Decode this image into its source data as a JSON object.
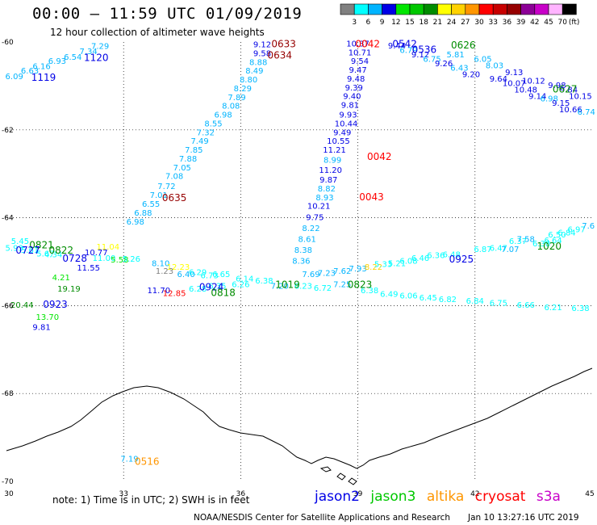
{
  "header": {
    "title": "00:00 – 11:59 UTC 01/09/2019",
    "subtitle": "12 hour collection of altimeter wave heights"
  },
  "legend": {
    "unit": "(ft)",
    "bins": [
      {
        "label": "3",
        "color": "#808080"
      },
      {
        "label": "6",
        "color": "#00ffff"
      },
      {
        "label": "9",
        "color": "#00b4ff"
      },
      {
        "label": "12",
        "color": "#0000e6"
      },
      {
        "label": "15",
        "color": "#00e600"
      },
      {
        "label": "18",
        "color": "#00c800"
      },
      {
        "label": "21",
        "color": "#008c00"
      },
      {
        "label": "24",
        "color": "#ffff00"
      },
      {
        "label": "27",
        "color": "#ffd200"
      },
      {
        "label": "30",
        "color": "#ff9600"
      },
      {
        "label": "33",
        "color": "#ff0000"
      },
      {
        "label": "36",
        "color": "#c80000"
      },
      {
        "label": "39",
        "color": "#960000"
      },
      {
        "label": "42",
        "color": "#8c0096"
      },
      {
        "label": "45",
        "color": "#c800c8"
      },
      {
        "label": "70",
        "color": "#ffb4ff"
      },
      {
        "label": "",
        "color": "#000000"
      }
    ]
  },
  "axes": {
    "lon_ticks": [
      "30",
      "33",
      "36",
      "39",
      "42",
      "45"
    ],
    "lat_ticks": [
      "-60",
      "-62",
      "-64",
      "-66",
      "-68",
      "-70"
    ]
  },
  "map": {
    "lon_range": [
      30,
      45
    ],
    "lat_range": [
      -70,
      -60
    ],
    "wave_heights": [
      {
        "t": "6.09",
        "lon": 30.2,
        "lat": -60.85,
        "c": "#00b4ff"
      },
      {
        "t": "6.63",
        "lon": 30.6,
        "lat": -60.72,
        "c": "#00b4ff"
      },
      {
        "t": "6.16",
        "lon": 30.9,
        "lat": -60.62,
        "c": "#00b4ff"
      },
      {
        "t": "6.93",
        "lon": 31.3,
        "lat": -60.5,
        "c": "#00b4ff"
      },
      {
        "t": "6.54",
        "lon": 31.7,
        "lat": -60.4,
        "c": "#00b4ff"
      },
      {
        "t": "7.34",
        "lon": 32.1,
        "lat": -60.28,
        "c": "#00b4ff"
      },
      {
        "t": "7.29",
        "lon": 32.4,
        "lat": -60.16,
        "c": "#00b4ff"
      },
      {
        "t": "9.12",
        "lon": 36.55,
        "lat": -60.12,
        "c": "#0000e6"
      },
      {
        "t": "9.58",
        "lon": 36.55,
        "lat": -60.32,
        "c": "#0000e6"
      },
      {
        "t": "8.88",
        "lon": 36.45,
        "lat": -60.52,
        "c": "#00b4ff"
      },
      {
        "t": "8.49",
        "lon": 36.35,
        "lat": -60.72,
        "c": "#00b4ff"
      },
      {
        "t": "8.80",
        "lon": 36.2,
        "lat": -60.92,
        "c": "#00b4ff"
      },
      {
        "t": "8.29",
        "lon": 36.05,
        "lat": -61.12,
        "c": "#00b4ff"
      },
      {
        "t": "7.89",
        "lon": 35.9,
        "lat": -61.32,
        "c": "#00b4ff"
      },
      {
        "t": "8.08",
        "lon": 35.75,
        "lat": -61.52,
        "c": "#00b4ff"
      },
      {
        "t": "6.98",
        "lon": 35.55,
        "lat": -61.72,
        "c": "#00b4ff"
      },
      {
        "t": "8.55",
        "lon": 35.3,
        "lat": -61.92,
        "c": "#00b4ff"
      },
      {
        "t": "7.32",
        "lon": 35.1,
        "lat": -62.12,
        "c": "#00b4ff"
      },
      {
        "t": "7.49",
        "lon": 34.95,
        "lat": -62.32,
        "c": "#00b4ff"
      },
      {
        "t": "7.85",
        "lon": 34.8,
        "lat": -62.52,
        "c": "#00b4ff"
      },
      {
        "t": "7.88",
        "lon": 34.65,
        "lat": -62.72,
        "c": "#00b4ff"
      },
      {
        "t": "7.05",
        "lon": 34.5,
        "lat": -62.92,
        "c": "#00b4ff"
      },
      {
        "t": "7.08",
        "lon": 34.3,
        "lat": -63.12,
        "c": "#00b4ff"
      },
      {
        "t": "7.72",
        "lon": 34.1,
        "lat": -63.35,
        "c": "#00b4ff"
      },
      {
        "t": "7.01",
        "lon": 33.9,
        "lat": -63.55,
        "c": "#00b4ff"
      },
      {
        "t": "6.55",
        "lon": 33.7,
        "lat": -63.75,
        "c": "#00b4ff"
      },
      {
        "t": "6.88",
        "lon": 33.5,
        "lat": -63.95,
        "c": "#00b4ff"
      },
      {
        "t": "6.98",
        "lon": 33.3,
        "lat": -64.15,
        "c": "#00b4ff"
      },
      {
        "t": "10.37",
        "lon": 39.0,
        "lat": -60.1,
        "c": "#0000e6"
      },
      {
        "t": "10.71",
        "lon": 39.05,
        "lat": -60.3,
        "c": "#0000e6"
      },
      {
        "t": "9.54",
        "lon": 39.05,
        "lat": -60.5,
        "c": "#0000e6"
      },
      {
        "t": "9.47",
        "lon": 39.0,
        "lat": -60.7,
        "c": "#0000e6"
      },
      {
        "t": "9.48",
        "lon": 38.95,
        "lat": -60.9,
        "c": "#0000e6"
      },
      {
        "t": "9.39",
        "lon": 38.9,
        "lat": -61.1,
        "c": "#0000e6"
      },
      {
        "t": "9.40",
        "lon": 38.85,
        "lat": -61.3,
        "c": "#0000e6"
      },
      {
        "t": "9.81",
        "lon": 38.8,
        "lat": -61.5,
        "c": "#0000e6"
      },
      {
        "t": "9.93",
        "lon": 38.75,
        "lat": -61.72,
        "c": "#0000e6"
      },
      {
        "t": "10.44",
        "lon": 38.7,
        "lat": -61.92,
        "c": "#0000e6"
      },
      {
        "t": "9.49",
        "lon": 38.6,
        "lat": -62.12,
        "c": "#0000e6"
      },
      {
        "t": "10.55",
        "lon": 38.5,
        "lat": -62.32,
        "c": "#0000e6"
      },
      {
        "t": "11.21",
        "lon": 38.4,
        "lat": -62.52,
        "c": "#0000e6"
      },
      {
        "t": "8.99",
        "lon": 38.35,
        "lat": -62.75,
        "c": "#00b4ff"
      },
      {
        "t": "11.20",
        "lon": 38.3,
        "lat": -62.98,
        "c": "#0000e6"
      },
      {
        "t": "9.87",
        "lon": 38.25,
        "lat": -63.2,
        "c": "#0000e6"
      },
      {
        "t": "8.82",
        "lon": 38.2,
        "lat": -63.4,
        "c": "#00b4ff"
      },
      {
        "t": "8.93",
        "lon": 38.15,
        "lat": -63.6,
        "c": "#00b4ff"
      },
      {
        "t": "10.21",
        "lon": 38.0,
        "lat": -63.8,
        "c": "#0000e6"
      },
      {
        "t": "9.75",
        "lon": 37.9,
        "lat": -64.05,
        "c": "#0000e6"
      },
      {
        "t": "8.22",
        "lon": 37.8,
        "lat": -64.3,
        "c": "#00b4ff"
      },
      {
        "t": "8.61",
        "lon": 37.7,
        "lat": -64.55,
        "c": "#00b4ff"
      },
      {
        "t": "8.38",
        "lon": 37.6,
        "lat": -64.8,
        "c": "#00b4ff"
      },
      {
        "t": "8.36",
        "lon": 37.55,
        "lat": -65.05,
        "c": "#00b4ff"
      },
      {
        "t": "9.44",
        "lon": 40.0,
        "lat": -60.15,
        "c": "#0000e6"
      },
      {
        "t": "6.79",
        "lon": 40.3,
        "lat": -60.25,
        "c": "#00b4ff"
      },
      {
        "t": "9.12",
        "lon": 40.6,
        "lat": -60.35,
        "c": "#0000e6"
      },
      {
        "t": "6.75",
        "lon": 40.9,
        "lat": -60.45,
        "c": "#00b4ff"
      },
      {
        "t": "9.26",
        "lon": 41.2,
        "lat": -60.55,
        "c": "#0000e6"
      },
      {
        "t": "5.81",
        "lon": 41.5,
        "lat": -60.35,
        "c": "#00b4ff"
      },
      {
        "t": "6.43",
        "lon": 41.6,
        "lat": -60.65,
        "c": "#00b4ff"
      },
      {
        "t": "9.20",
        "lon": 41.9,
        "lat": -60.8,
        "c": "#0000e6"
      },
      {
        "t": "6.05",
        "lon": 42.2,
        "lat": -60.45,
        "c": "#00b4ff"
      },
      {
        "t": "8.03",
        "lon": 42.5,
        "lat": -60.6,
        "c": "#00b4ff"
      },
      {
        "t": "9.64",
        "lon": 42.6,
        "lat": -60.9,
        "c": "#0000e6"
      },
      {
        "t": "9.13",
        "lon": 43.0,
        "lat": -60.75,
        "c": "#0000e6"
      },
      {
        "t": "10.07",
        "lon": 43.0,
        "lat": -61.0,
        "c": "#0000e6"
      },
      {
        "t": "10.12",
        "lon": 43.5,
        "lat": -60.95,
        "c": "#0000e6"
      },
      {
        "t": "10.48",
        "lon": 43.3,
        "lat": -61.15,
        "c": "#0000e6"
      },
      {
        "t": "9.14",
        "lon": 43.6,
        "lat": -61.3,
        "c": "#0000e6"
      },
      {
        "t": "9.98",
        "lon": 44.1,
        "lat": -61.05,
        "c": "#0000e6"
      },
      {
        "t": "9.84",
        "lon": 44.4,
        "lat": -61.15,
        "c": "#0000e6"
      },
      {
        "t": "6.98",
        "lon": 43.9,
        "lat": -61.35,
        "c": "#00b4ff"
      },
      {
        "t": "10.15",
        "lon": 44.7,
        "lat": -61.3,
        "c": "#0000e6"
      },
      {
        "t": "9.15",
        "lon": 44.2,
        "lat": -61.45,
        "c": "#0000e6"
      },
      {
        "t": "10.66",
        "lon": 44.45,
        "lat": -61.6,
        "c": "#0000e6"
      },
      {
        "t": "6.74",
        "lon": 44.85,
        "lat": -61.65,
        "c": "#00b4ff"
      },
      {
        "t": "5.45",
        "lon": 30.35,
        "lat": -64.6,
        "c": "#00ffff"
      },
      {
        "t": "5.93",
        "lon": 30.2,
        "lat": -64.75,
        "c": "#00ffff"
      },
      {
        "t": "5.61",
        "lon": 30.6,
        "lat": -64.8,
        "c": "#00ffff"
      },
      {
        "t": "5.67",
        "lon": 31.0,
        "lat": -64.88,
        "c": "#00ffff"
      },
      {
        "t": "4.34",
        "lon": 31.2,
        "lat": -64.9,
        "c": "#00ffff"
      },
      {
        "t": "10.77",
        "lon": 32.3,
        "lat": -64.85,
        "c": "#0000e6"
      },
      {
        "t": "11.04",
        "lon": 32.6,
        "lat": -64.72,
        "c": "#ffff00"
      },
      {
        "t": "11.00",
        "lon": 32.5,
        "lat": -64.98,
        "c": "#00ffff"
      },
      {
        "t": "5.58",
        "lon": 32.9,
        "lat": -65.02,
        "c": "#00e600"
      },
      {
        "t": "5.26",
        "lon": 33.2,
        "lat": -65.0,
        "c": "#00ffff"
      },
      {
        "t": "11.55",
        "lon": 32.1,
        "lat": -65.2,
        "c": "#0000e6"
      },
      {
        "t": "4.21",
        "lon": 31.4,
        "lat": -65.42,
        "c": "#00e600"
      },
      {
        "t": "19.19",
        "lon": 31.6,
        "lat": -65.68,
        "c": "#008c00"
      },
      {
        "t": "20.44",
        "lon": 30.4,
        "lat": -66.05,
        "c": "#008c00"
      },
      {
        "t": "13.70",
        "lon": 31.05,
        "lat": -66.32,
        "c": "#00e600"
      },
      {
        "t": "9.81",
        "lon": 30.9,
        "lat": -66.55,
        "c": "#0000e6"
      },
      {
        "t": "8.10",
        "lon": 33.95,
        "lat": -65.1,
        "c": "#00b4ff"
      },
      {
        "t": "12.23",
        "lon": 34.4,
        "lat": -65.18,
        "c": "#ffff00"
      },
      {
        "t": "1.23",
        "lon": 34.05,
        "lat": -65.28,
        "c": "#808080"
      },
      {
        "t": "6.40",
        "lon": 34.6,
        "lat": -65.35,
        "c": "#00b4ff"
      },
      {
        "t": "6.29",
        "lon": 34.9,
        "lat": -65.3,
        "c": "#00ffff"
      },
      {
        "t": "6.73",
        "lon": 35.2,
        "lat": -65.38,
        "c": "#00ffff"
      },
      {
        "t": "6.65",
        "lon": 35.5,
        "lat": -65.35,
        "c": "#00ffff"
      },
      {
        "t": "6.14",
        "lon": 36.1,
        "lat": -65.45,
        "c": "#00ffff"
      },
      {
        "t": "11.70",
        "lon": 33.9,
        "lat": -65.72,
        "c": "#0000e6"
      },
      {
        "t": "12.85",
        "lon": 34.3,
        "lat": -65.78,
        "c": "#ff0000"
      },
      {
        "t": "6.28",
        "lon": 34.9,
        "lat": -65.68,
        "c": "#00ffff"
      },
      {
        "t": "6.35",
        "lon": 35.4,
        "lat": -65.62,
        "c": "#00ffff"
      },
      {
        "t": "6.26",
        "lon": 36.0,
        "lat": -65.58,
        "c": "#00ffff"
      },
      {
        "t": "6.38",
        "lon": 36.6,
        "lat": -65.5,
        "c": "#00ffff"
      },
      {
        "t": "7.69",
        "lon": 37.8,
        "lat": -65.35,
        "c": "#00b4ff"
      },
      {
        "t": "7.23",
        "lon": 38.2,
        "lat": -65.32,
        "c": "#00b4ff"
      },
      {
        "t": "7.62",
        "lon": 38.6,
        "lat": -65.28,
        "c": "#00b4ff"
      },
      {
        "t": "7.93",
        "lon": 39.0,
        "lat": -65.22,
        "c": "#00b4ff"
      },
      {
        "t": "8.22",
        "lon": 39.4,
        "lat": -65.18,
        "c": "#ffd200"
      },
      {
        "t": "5.33",
        "lon": 39.65,
        "lat": -65.12,
        "c": "#00ffff"
      },
      {
        "t": "5.21",
        "lon": 40.0,
        "lat": -65.1,
        "c": "#00ffff"
      },
      {
        "t": "6.08",
        "lon": 40.3,
        "lat": -65.05,
        "c": "#00ffff"
      },
      {
        "t": "6.46",
        "lon": 40.6,
        "lat": -64.98,
        "c": "#00ffff"
      },
      {
        "t": "6.36",
        "lon": 41.0,
        "lat": -64.92,
        "c": "#00ffff"
      },
      {
        "t": "6.48",
        "lon": 41.4,
        "lat": -64.9,
        "c": "#00ffff"
      },
      {
        "t": "6.87",
        "lon": 42.2,
        "lat": -64.78,
        "c": "#00ffff"
      },
      {
        "t": "6.47",
        "lon": 42.6,
        "lat": -64.75,
        "c": "#00ffff"
      },
      {
        "t": "7.07",
        "lon": 42.9,
        "lat": -64.78,
        "c": "#00b4ff"
      },
      {
        "t": "6.37",
        "lon": 43.1,
        "lat": -64.6,
        "c": "#00ffff"
      },
      {
        "t": "7.58",
        "lon": 43.3,
        "lat": -64.55,
        "c": "#00b4ff"
      },
      {
        "t": "6.38",
        "lon": 43.7,
        "lat": -64.65,
        "c": "#00ffff"
      },
      {
        "t": "6.64",
        "lon": 44.0,
        "lat": -64.58,
        "c": "#00ffff"
      },
      {
        "t": "6.50",
        "lon": 44.1,
        "lat": -64.45,
        "c": "#00ffff"
      },
      {
        "t": "6.84",
        "lon": 44.35,
        "lat": -64.4,
        "c": "#00ffff"
      },
      {
        "t": "6.97",
        "lon": 44.6,
        "lat": -64.33,
        "c": "#00ffff"
      },
      {
        "t": "7.6",
        "lon": 44.9,
        "lat": -64.25,
        "c": "#00b4ff"
      },
      {
        "t": "7.20",
        "lon": 37.0,
        "lat": -65.62,
        "c": "#00b4ff"
      },
      {
        "t": "6.23",
        "lon": 37.6,
        "lat": -65.62,
        "c": "#00ffff"
      },
      {
        "t": "6.72",
        "lon": 38.1,
        "lat": -65.66,
        "c": "#00ffff"
      },
      {
        "t": "7.25",
        "lon": 38.6,
        "lat": -65.58,
        "c": "#00b4ff"
      },
      {
        "t": "6.38",
        "lon": 39.3,
        "lat": -65.72,
        "c": "#00ffff"
      },
      {
        "t": "6.49",
        "lon": 39.8,
        "lat": -65.8,
        "c": "#00ffff"
      },
      {
        "t": "6.06",
        "lon": 40.3,
        "lat": -65.84,
        "c": "#00ffff"
      },
      {
        "t": "6.45",
        "lon": 40.8,
        "lat": -65.88,
        "c": "#00ffff"
      },
      {
        "t": "6.82",
        "lon": 41.3,
        "lat": -65.92,
        "c": "#00ffff"
      },
      {
        "t": "6.84",
        "lon": 42.0,
        "lat": -65.96,
        "c": "#00ffff"
      },
      {
        "t": "6.75",
        "lon": 42.6,
        "lat": -66.0,
        "c": "#00ffff"
      },
      {
        "t": "6.66",
        "lon": 43.3,
        "lat": -66.05,
        "c": "#00ffff"
      },
      {
        "t": "6.21",
        "lon": 44.0,
        "lat": -66.1,
        "c": "#00ffff"
      },
      {
        "t": "6.38",
        "lon": 44.7,
        "lat": -66.12,
        "c": "#00ffff"
      },
      {
        "t": "7.19",
        "lon": 33.15,
        "lat": -69.55,
        "c": "#00b4ff"
      }
    ],
    "times": [
      {
        "t": "1119",
        "lon": 30.95,
        "lat": -60.88,
        "c": "#0000e6"
      },
      {
        "t": "1120",
        "lon": 32.3,
        "lat": -60.43,
        "c": "#0000e6"
      },
      {
        "t": "0633",
        "lon": 37.1,
        "lat": -60.12,
        "c": "#960000"
      },
      {
        "t": "0634",
        "lon": 37.0,
        "lat": -60.38,
        "c": "#960000"
      },
      {
        "t": "0042",
        "lon": 39.25,
        "lat": -60.12,
        "c": "#ff0000"
      },
      {
        "t": "0542",
        "lon": 40.2,
        "lat": -60.12,
        "c": "#0000e6"
      },
      {
        "t": "0536",
        "lon": 40.7,
        "lat": -60.25,
        "c": "#0000e6"
      },
      {
        "t": "0626",
        "lon": 41.7,
        "lat": -60.15,
        "c": "#008c00"
      },
      {
        "t": "0627",
        "lon": 44.3,
        "lat": -61.15,
        "c": "#008c00"
      },
      {
        "t": "0042",
        "lon": 39.55,
        "lat": -62.68,
        "c": "#ff0000"
      },
      {
        "t": "0043",
        "lon": 39.35,
        "lat": -63.6,
        "c": "#ff0000"
      },
      {
        "t": "0635",
        "lon": 34.3,
        "lat": -63.62,
        "c": "#960000"
      },
      {
        "t": "0821",
        "lon": 30.9,
        "lat": -64.7,
        "c": "#008c00"
      },
      {
        "t": "0727",
        "lon": 30.55,
        "lat": -64.82,
        "c": "#0000e6"
      },
      {
        "t": "0822",
        "lon": 31.4,
        "lat": -64.82,
        "c": "#008c00"
      },
      {
        "t": "0728",
        "lon": 31.75,
        "lat": -65.0,
        "c": "#0000e6"
      },
      {
        "t": "0923",
        "lon": 31.25,
        "lat": -66.05,
        "c": "#0000e6"
      },
      {
        "t": "0924",
        "lon": 35.25,
        "lat": -65.65,
        "c": "#0000e6"
      },
      {
        "t": "0818",
        "lon": 35.55,
        "lat": -65.78,
        "c": "#008c00"
      },
      {
        "t": "1019",
        "lon": 37.2,
        "lat": -65.6,
        "c": "#008c00"
      },
      {
        "t": "0823",
        "lon": 39.05,
        "lat": -65.6,
        "c": "#008c00"
      },
      {
        "t": "0925",
        "lon": 41.65,
        "lat": -65.02,
        "c": "#0000e6"
      },
      {
        "t": "1020",
        "lon": 43.9,
        "lat": -64.72,
        "c": "#008c00"
      },
      {
        "t": "0516",
        "lon": 33.6,
        "lat": -69.62,
        "c": "#ff9600"
      }
    ]
  },
  "note": "note:  1) Time is in UTC;  2) SWH is in feet",
  "satellites": [
    {
      "name": "jason2",
      "color": "#0000e6"
    },
    {
      "name": "jason3",
      "color": "#00c800"
    },
    {
      "name": "altika",
      "color": "#ff9600"
    },
    {
      "name": "cryosat",
      "color": "#ff0000"
    },
    {
      "name": "s3a",
      "color": "#c800c8"
    }
  ],
  "footer": {
    "credit": "NOAA/NESDIS Center for Satellite Applications and Research",
    "generated": "Jan 10 13:27:16 UTC 2019"
  }
}
